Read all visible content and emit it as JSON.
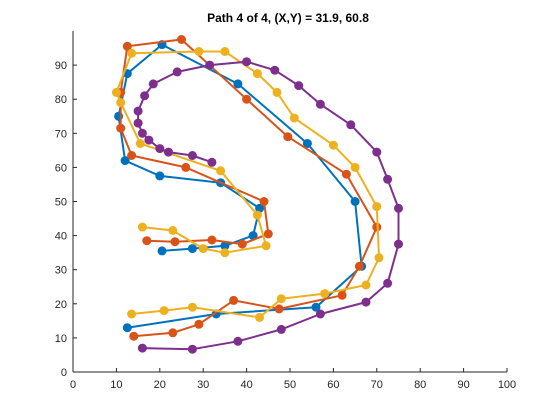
{
  "chart_data": {
    "type": "line",
    "title": "Path 4 of 4, (X,Y) = 31.9, 60.8",
    "xlabel": "",
    "ylabel": "",
    "xlim": [
      0,
      100
    ],
    "ylim": [
      0,
      100
    ],
    "xticks": [
      0,
      10,
      20,
      30,
      40,
      50,
      60,
      70,
      80,
      90,
      100
    ],
    "yticks": [
      0,
      10,
      20,
      30,
      40,
      50,
      60,
      70,
      80,
      90
    ],
    "grid": false,
    "legend": "none",
    "series": [
      {
        "color": "#0072BD",
        "points": [
          [
            20.5,
            35.5
          ],
          [
            27.5,
            36.2
          ],
          [
            35,
            37
          ],
          [
            41.5,
            40
          ],
          [
            43,
            48
          ],
          [
            34,
            55.5
          ],
          [
            20,
            57.5
          ],
          [
            12,
            62
          ],
          [
            10.5,
            75
          ],
          [
            12.5,
            87.5
          ],
          [
            20.5,
            96
          ],
          [
            38,
            84.5
          ],
          [
            54,
            67
          ],
          [
            65,
            50
          ],
          [
            66.5,
            31
          ],
          [
            56,
            19
          ],
          [
            33,
            17
          ],
          [
            12.5,
            13
          ]
        ]
      },
      {
        "color": "#D95319",
        "points": [
          [
            17,
            38.5
          ],
          [
            23.5,
            38.2
          ],
          [
            32,
            38.7
          ],
          [
            39,
            37.5
          ],
          [
            45,
            40.5
          ],
          [
            44,
            50
          ],
          [
            26,
            60
          ],
          [
            13.5,
            63.5
          ],
          [
            11,
            71.5
          ],
          [
            11,
            82
          ],
          [
            12.5,
            95.5
          ],
          [
            25,
            97.5
          ],
          [
            40,
            80
          ],
          [
            49.5,
            69
          ],
          [
            63,
            58
          ],
          [
            70,
            42.5
          ],
          [
            66,
            31
          ],
          [
            62,
            22.5
          ],
          [
            47.5,
            18.5
          ],
          [
            37,
            21
          ],
          [
            29,
            14
          ],
          [
            23,
            11.5
          ],
          [
            14,
            10.5
          ]
        ]
      },
      {
        "color": "#EDB120",
        "points": [
          [
            16,
            42.5
          ],
          [
            23,
            41.5
          ],
          [
            30,
            36.2
          ],
          [
            35,
            35
          ],
          [
            44.5,
            37
          ],
          [
            42.5,
            46
          ],
          [
            34,
            59
          ],
          [
            15.5,
            67
          ],
          [
            11,
            79
          ],
          [
            10,
            82
          ],
          [
            13.5,
            93.5
          ],
          [
            29,
            94
          ],
          [
            35,
            94
          ],
          [
            42.5,
            87.5
          ],
          [
            47,
            82
          ],
          [
            51,
            74.5
          ],
          [
            60,
            66.5
          ],
          [
            65,
            60
          ],
          [
            70,
            48.5
          ],
          [
            70.5,
            33.5
          ],
          [
            67.5,
            25.5
          ],
          [
            58,
            23
          ],
          [
            48,
            21.5
          ],
          [
            43,
            16
          ],
          [
            27.5,
            19
          ],
          [
            21,
            18
          ],
          [
            13.5,
            17
          ]
        ]
      },
      {
        "color": "#7E2F8E",
        "points": [
          [
            16,
            7
          ],
          [
            27.5,
            6.7
          ],
          [
            38,
            9
          ],
          [
            48,
            12.5
          ],
          [
            57,
            17
          ],
          [
            67.5,
            20.5
          ],
          [
            72.5,
            26
          ],
          [
            75,
            37.5
          ],
          [
            75,
            48
          ],
          [
            72.5,
            56.5
          ],
          [
            70,
            64.5
          ],
          [
            64,
            72.5
          ],
          [
            57,
            78.5
          ],
          [
            52,
            84
          ],
          [
            46.5,
            88.5
          ],
          [
            40,
            91
          ],
          [
            31.5,
            90
          ],
          [
            24,
            88
          ],
          [
            18.5,
            84.5
          ],
          [
            16.5,
            81
          ],
          [
            15,
            76.5
          ],
          [
            15,
            73
          ],
          [
            16,
            70
          ],
          [
            17.5,
            68
          ],
          [
            20,
            65.5
          ],
          [
            22,
            64.5
          ],
          [
            27.5,
            63.5
          ],
          [
            32,
            61.5
          ]
        ]
      }
    ]
  }
}
